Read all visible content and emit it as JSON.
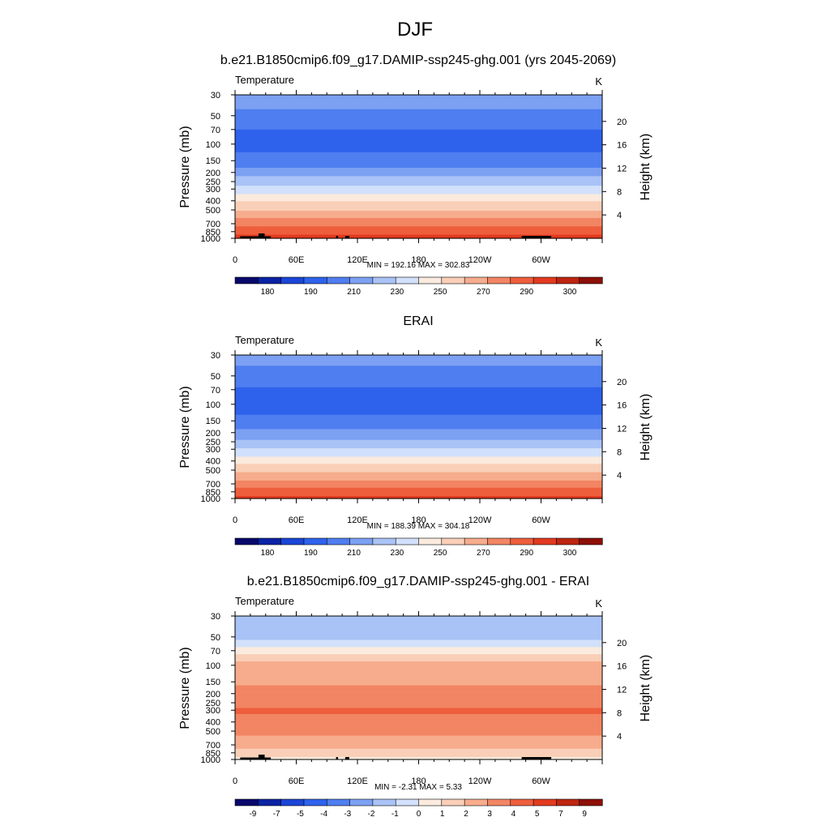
{
  "figure": {
    "title": "DJF"
  },
  "colors": {
    "temperature_bins": [
      "#08086b",
      "#0a22a3",
      "#1a45d6",
      "#2e62ec",
      "#4f7ef0",
      "#7ca0f2",
      "#a9c3f6",
      "#d2e0fb",
      "#faebde",
      "#f9cfb8",
      "#f6ac8d",
      "#f28563",
      "#ee5e3c",
      "#e23a1f",
      "#be2510",
      "#8c0f08"
    ],
    "diff_bins": [
      "#08086b",
      "#0a22a3",
      "#1a45d6",
      "#2e62ec",
      "#4f7ef0",
      "#7ca0f2",
      "#a9c3f6",
      "#d2e0fb",
      "#faebde",
      "#f9cfb8",
      "#f6ac8d",
      "#f28563",
      "#ee5e3c",
      "#e23a1f",
      "#be2510",
      "#8c0f08"
    ],
    "terrain": "#000000"
  },
  "chart_data": [
    {
      "type": "heatmap",
      "title": "b.e21.B1850cmip6.f09_g17.DAMIP-ssp245-ghg.001 (yrs 2045-2069)",
      "left_label": "Temperature",
      "right_label": "K",
      "ylabel": "Pressure (mb)",
      "ylabel_right": "Height (km)",
      "xticks": [
        "0",
        "60E",
        "120E",
        "180",
        "120W",
        "60W"
      ],
      "pressure_levels": [
        30,
        50,
        70,
        100,
        150,
        200,
        250,
        300,
        400,
        500,
        700,
        850,
        1000
      ],
      "height_ticks": [
        20,
        16,
        12,
        8,
        4
      ],
      "ylim": [
        30,
        1000
      ],
      "xlim": [
        0,
        360
      ],
      "stats": "MIN = 192.16  MAX = 302.83",
      "colorbar_labels": [
        "180",
        "190",
        "210",
        "230",
        "250",
        "270",
        "290",
        "300"
      ],
      "profile_levels": [
        30,
        50,
        70,
        100,
        150,
        200,
        250,
        300,
        400,
        500,
        700,
        850,
        1000
      ],
      "profile_values": [
        216,
        207,
        200,
        197,
        203,
        215,
        226,
        234,
        249,
        259,
        277,
        286,
        294
      ]
    },
    {
      "type": "heatmap",
      "title": "ERAI",
      "left_label": "Temperature",
      "right_label": "K",
      "ylabel": "Pressure (mb)",
      "ylabel_right": "Height (km)",
      "xticks": [
        "0",
        "60E",
        "120E",
        "180",
        "120W",
        "60W"
      ],
      "pressure_levels": [
        30,
        50,
        70,
        100,
        150,
        200,
        250,
        300,
        400,
        500,
        700,
        850,
        1000
      ],
      "height_ticks": [
        20,
        16,
        12,
        8,
        4
      ],
      "ylim": [
        30,
        1000
      ],
      "xlim": [
        0,
        360
      ],
      "stats": "MIN = 188.39  MAX = 304.18",
      "colorbar_labels": [
        "180",
        "190",
        "210",
        "230",
        "250",
        "270",
        "290",
        "300"
      ],
      "profile_levels": [
        30,
        50,
        70,
        100,
        150,
        200,
        250,
        300,
        400,
        500,
        700,
        850,
        1000
      ],
      "profile_values": [
        215,
        205,
        199,
        196,
        202,
        213,
        222,
        231,
        246,
        257,
        275,
        285,
        293
      ]
    },
    {
      "type": "heatmap",
      "title": "b.e21.B1850cmip6.f09_g17.DAMIP-ssp245-ghg.001 - ERAI",
      "left_label": "Temperature",
      "right_label": "K",
      "ylabel": "Pressure (mb)",
      "ylabel_right": "Height (km)",
      "xticks": [
        "0",
        "60E",
        "120E",
        "180",
        "120W",
        "60W"
      ],
      "pressure_levels": [
        30,
        50,
        70,
        100,
        150,
        200,
        250,
        300,
        400,
        500,
        700,
        850,
        1000
      ],
      "height_ticks": [
        20,
        16,
        12,
        8,
        4
      ],
      "ylim": [
        30,
        1000
      ],
      "xlim": [
        0,
        360
      ],
      "stats": "MIN = -2.31  MAX =  5.33",
      "colorbar_labels": [
        "-9",
        "-7",
        "-5",
        "-4",
        "-3",
        "-2",
        "-1",
        "0",
        "1",
        "2",
        "3",
        "4",
        "5",
        "7",
        "9"
      ],
      "profile_levels": [
        30,
        50,
        70,
        100,
        150,
        200,
        250,
        300,
        400,
        500,
        700,
        850,
        1000
      ],
      "profile_values": [
        -1.5,
        -1.3,
        0.4,
        2.5,
        2.9,
        3.2,
        3.8,
        4.1,
        3.8,
        3.2,
        2.5,
        1.5,
        0.8
      ]
    }
  ]
}
